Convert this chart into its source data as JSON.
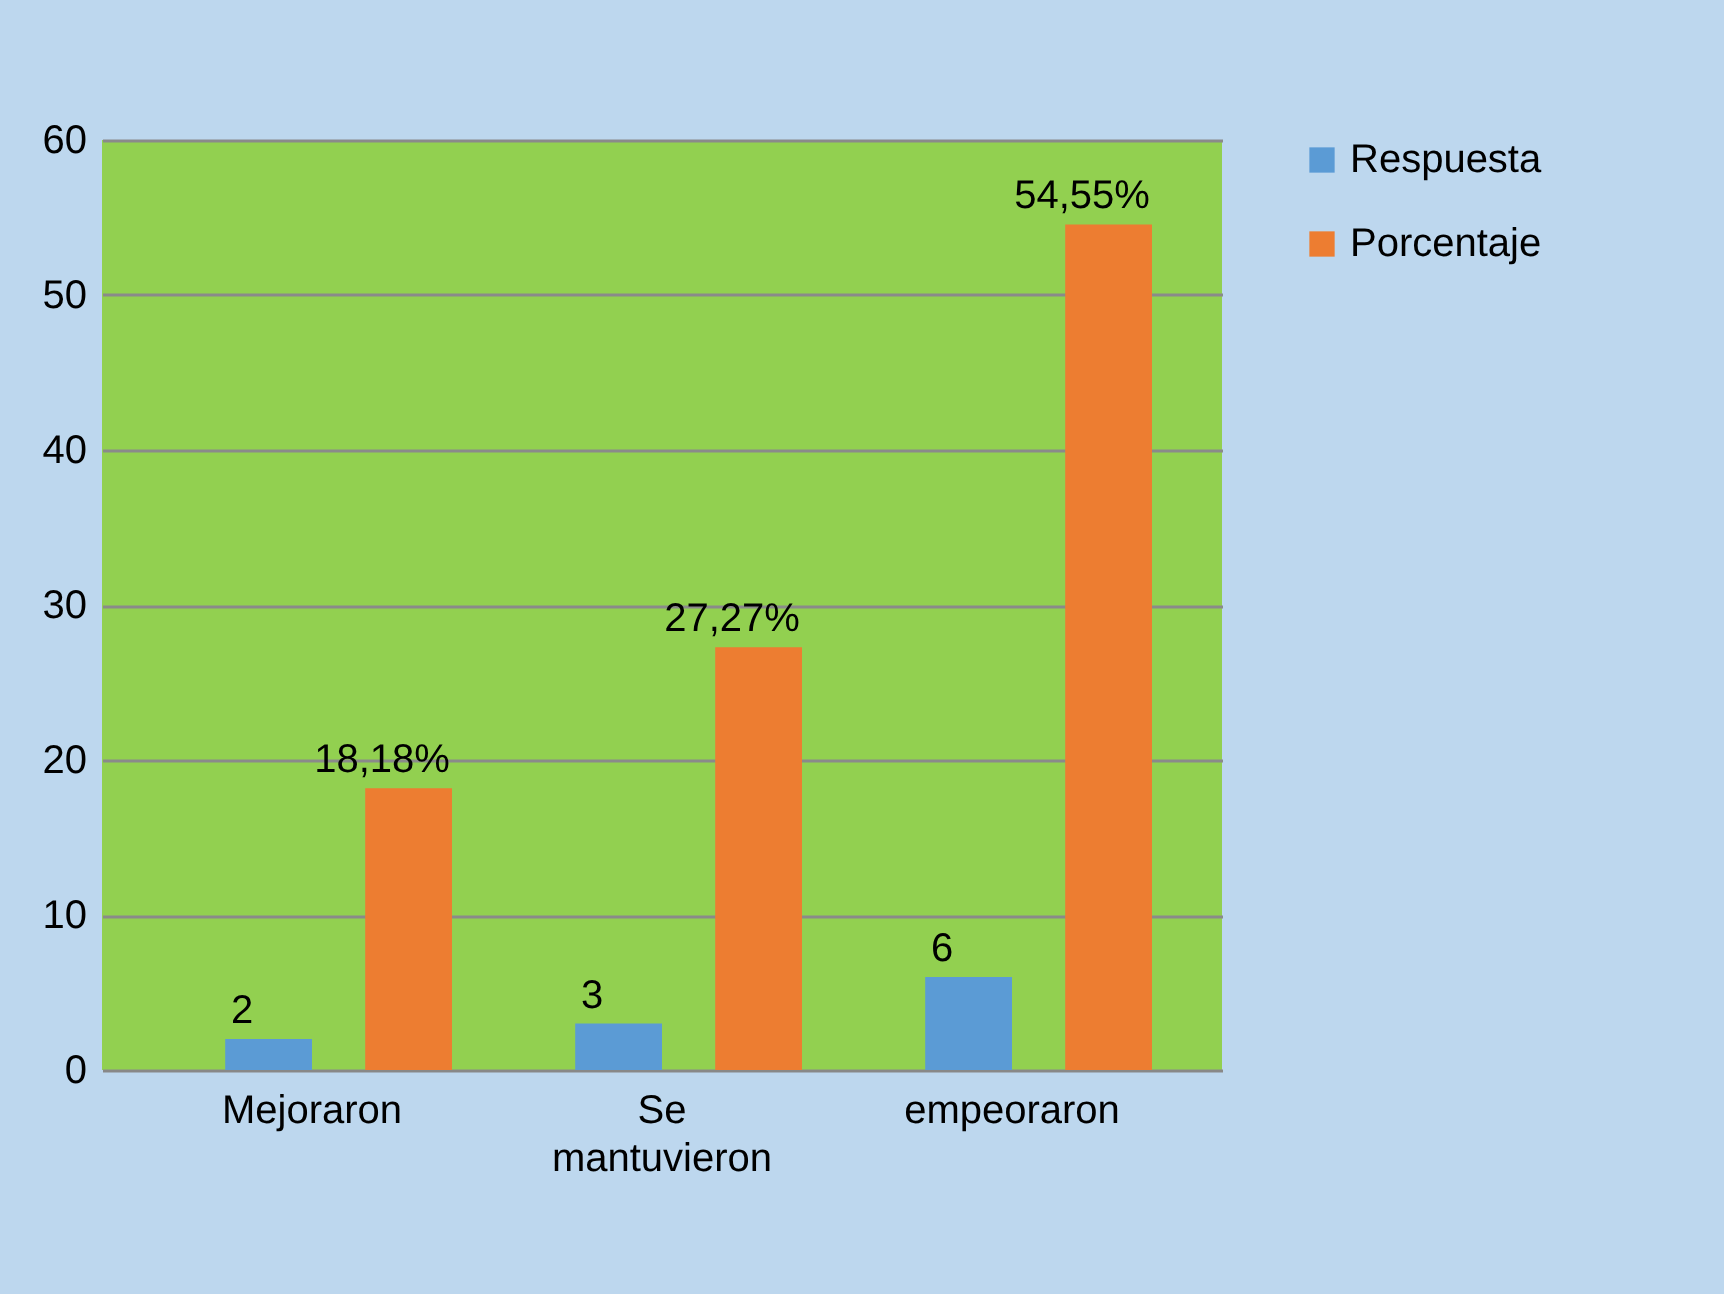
{
  "chart_data": {
    "type": "bar",
    "categories": [
      "Mejoraron",
      "Se mantuvieron",
      "empeoraron"
    ],
    "series": [
      {
        "name": "Respuesta",
        "color": "#5b9bd5",
        "values": [
          2,
          3,
          6
        ],
        "value_labels": [
          "2",
          "3",
          "6"
        ]
      },
      {
        "name": "Porcentaje",
        "color": "#ed7d31",
        "values": [
          18.18,
          27.27,
          54.55
        ],
        "value_labels": [
          "18,18%",
          "27,27%",
          "54,55%"
        ]
      }
    ],
    "ylim": [
      0,
      60
    ],
    "yticks": [
      0,
      10,
      20,
      30,
      40,
      50,
      60
    ],
    "grid": "y",
    "legend": "right"
  }
}
